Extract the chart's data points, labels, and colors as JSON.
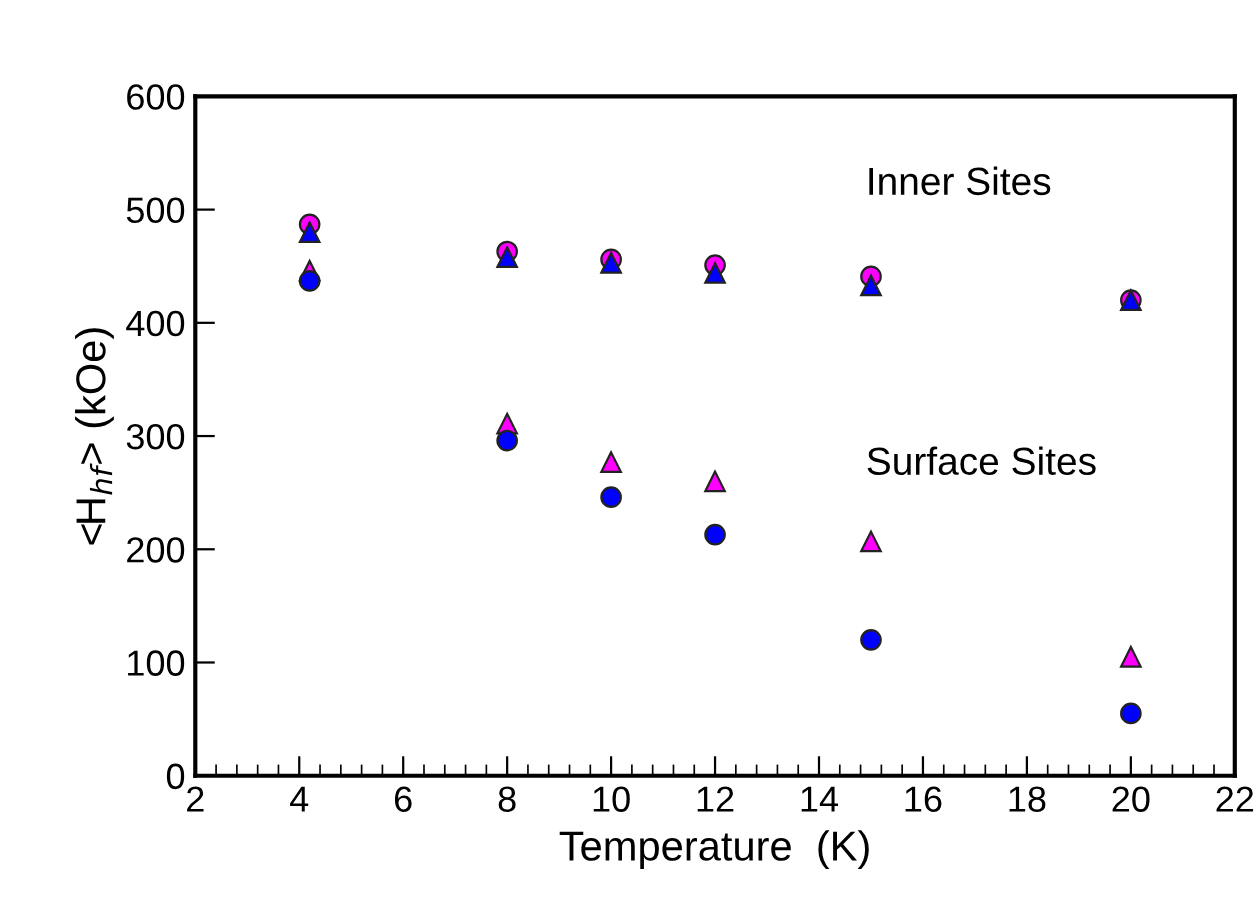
{
  "chart_data": {
    "type": "scatter",
    "xlabel": "Temperature  (K)",
    "ylabel": "<H$_{hf}$> (kOe)",
    "x": [
      4.2,
      8,
      10,
      12,
      15,
      20
    ],
    "series": [
      {
        "color": "#ff00ff",
        "marker": "circle",
        "values": [
          487,
          463,
          456,
          451,
          441,
          420
        ]
      },
      {
        "color": "#0000ff",
        "marker": "triangle",
        "values": [
          480,
          458,
          453,
          444,
          433,
          420
        ]
      },
      {
        "color": "#ff00ff",
        "marker": "triangle",
        "values": [
          446,
          311,
          277,
          260,
          207,
          105
        ]
      },
      {
        "color": "#0000ff",
        "marker": "circle",
        "values": [
          437,
          296,
          246,
          213,
          120,
          55
        ]
      }
    ],
    "annotations": [
      "Inner Sites",
      "Surface Sites"
    ],
    "xlim": [
      2,
      22
    ],
    "xticks": [
      2,
      4,
      6,
      8,
      10,
      12,
      14,
      16,
      18,
      20,
      22
    ],
    "ylim": [
      0,
      600
    ],
    "yticks": [
      0,
      100,
      200,
      300,
      400,
      500,
      600
    ],
    "grid": false,
    "legend": false
  }
}
